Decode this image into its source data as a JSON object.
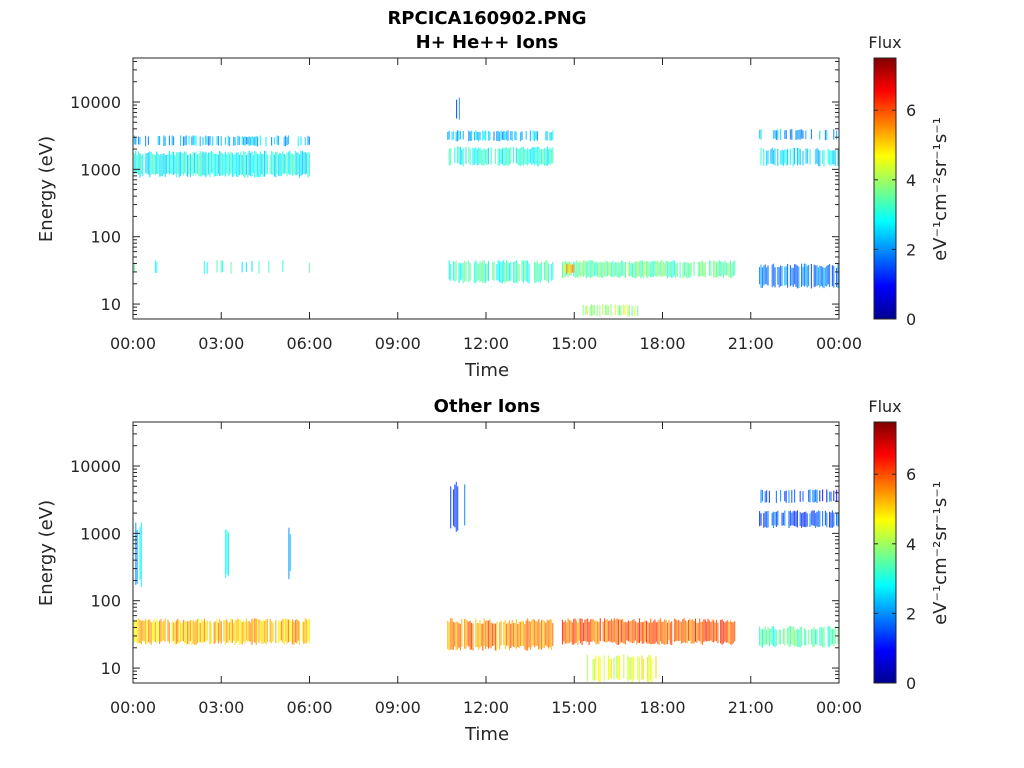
{
  "figure": {
    "title": "RPCICA160902.PNG"
  },
  "colors": {
    "colormap": "jet",
    "axis": "#262626",
    "background": "#ffffff"
  },
  "chart_data": [
    {
      "type": "heatmap",
      "title": "H+ He++ Ions",
      "xlabel": "Time",
      "ylabel": "Energy (eV)",
      "x_tick_labels": [
        "00:00",
        "03:00",
        "06:00",
        "09:00",
        "12:00",
        "15:00",
        "18:00",
        "21:00",
        "00:00"
      ],
      "x_range_hours": [
        0,
        24
      ],
      "y_scale": "log",
      "y_range": [
        6,
        45000
      ],
      "y_tick_labels": [
        "10",
        "100",
        "1000",
        "10000"
      ],
      "y_tick_values": [
        10,
        100,
        1000,
        10000
      ],
      "colorbar": {
        "label": "Flux",
        "units_label": "eV⁻¹cm⁻²sr⁻¹s⁻¹",
        "range": [
          0,
          7.5
        ],
        "tick_labels": [
          "0",
          "2",
          "4",
          "6"
        ],
        "tick_values": [
          0,
          2,
          4,
          6
        ]
      },
      "bands": [
        {
          "t0": 0.0,
          "t1": 6.0,
          "e_low": 2200,
          "e_high": 3200,
          "flux": 2.3,
          "density": 0.55
        },
        {
          "t0": 0.0,
          "t1": 6.0,
          "e_low": 750,
          "e_high": 1900,
          "flux": 2.9,
          "density": 0.95
        },
        {
          "t0": 0.0,
          "t1": 6.0,
          "e_low": 28,
          "e_high": 45,
          "flux": 3.0,
          "density": 0.18
        },
        {
          "t0": 10.7,
          "t1": 14.3,
          "e_low": 2600,
          "e_high": 3800,
          "flux": 2.3,
          "density": 0.6
        },
        {
          "t0": 10.7,
          "t1": 14.3,
          "e_low": 1100,
          "e_high": 2200,
          "flux": 3.0,
          "density": 0.85
        },
        {
          "t0": 11.0,
          "t1": 11.3,
          "e_low": 5000,
          "e_high": 12000,
          "flux": 1.6,
          "density": 0.35
        },
        {
          "t0": 10.7,
          "t1": 14.3,
          "e_low": 20,
          "e_high": 45,
          "flux": 3.2,
          "density": 0.8
        },
        {
          "t0": 14.6,
          "t1": 20.5,
          "e_low": 24,
          "e_high": 45,
          "flux": 3.5,
          "density": 0.9
        },
        {
          "t0": 14.7,
          "t1": 15.0,
          "e_low": 28,
          "e_high": 40,
          "flux": 5.2,
          "density": 0.9
        },
        {
          "t0": 15.3,
          "t1": 17.3,
          "e_low": 6.5,
          "e_high": 10,
          "flux": 4.0,
          "density": 0.6
        },
        {
          "t0": 21.3,
          "t1": 24.0,
          "e_low": 1100,
          "e_high": 2100,
          "flux": 2.6,
          "density": 0.7
        },
        {
          "t0": 21.3,
          "t1": 24.0,
          "e_low": 2700,
          "e_high": 4000,
          "flux": 2.2,
          "density": 0.4
        },
        {
          "t0": 21.3,
          "t1": 24.0,
          "e_low": 17,
          "e_high": 40,
          "flux": 1.8,
          "density": 0.85
        }
      ]
    },
    {
      "type": "heatmap",
      "title": "Other Ions",
      "xlabel": "Time",
      "ylabel": "Energy (eV)",
      "x_tick_labels": [
        "00:00",
        "03:00",
        "06:00",
        "09:00",
        "12:00",
        "15:00",
        "18:00",
        "21:00",
        "00:00"
      ],
      "x_range_hours": [
        0,
        24
      ],
      "y_scale": "log",
      "y_range": [
        6,
        45000
      ],
      "y_tick_labels": [
        "10",
        "100",
        "1000",
        "10000"
      ],
      "y_tick_values": [
        10,
        100,
        1000,
        10000
      ],
      "colorbar": {
        "label": "Flux",
        "units_label": "eV⁻¹cm⁻²sr⁻¹s⁻¹",
        "range": [
          0,
          7.5
        ],
        "tick_labels": [
          "0",
          "2",
          "4",
          "6"
        ],
        "tick_values": [
          0,
          2,
          4,
          6
        ]
      },
      "bands": [
        {
          "t0": 0.0,
          "t1": 6.0,
          "e_low": 22,
          "e_high": 55,
          "flux": 5.2,
          "density": 0.95
        },
        {
          "t0": 0.0,
          "t1": 0.3,
          "e_low": 150,
          "e_high": 1500,
          "flux": 2.5,
          "density": 0.5
        },
        {
          "t0": 3.1,
          "t1": 3.3,
          "e_low": 200,
          "e_high": 1300,
          "flux": 2.4,
          "density": 0.3
        },
        {
          "t0": 5.3,
          "t1": 5.6,
          "e_low": 200,
          "e_high": 1300,
          "flux": 2.4,
          "density": 0.3
        },
        {
          "t0": 10.8,
          "t1": 11.4,
          "e_low": 1000,
          "e_high": 6000,
          "flux": 1.6,
          "density": 0.45
        },
        {
          "t0": 10.7,
          "t1": 14.3,
          "e_low": 18,
          "e_high": 55,
          "flux": 5.6,
          "density": 0.95
        },
        {
          "t0": 14.6,
          "t1": 20.5,
          "e_low": 22,
          "e_high": 55,
          "flux": 5.9,
          "density": 0.95
        },
        {
          "t0": 15.4,
          "t1": 17.8,
          "e_low": 6,
          "e_high": 16,
          "flux": 4.5,
          "density": 0.6
        },
        {
          "t0": 21.3,
          "t1": 24.0,
          "e_low": 1200,
          "e_high": 2200,
          "flux": 1.6,
          "density": 0.7
        },
        {
          "t0": 21.3,
          "t1": 24.0,
          "e_low": 2800,
          "e_high": 4500,
          "flux": 1.5,
          "density": 0.4
        },
        {
          "t0": 21.3,
          "t1": 24.0,
          "e_low": 20,
          "e_high": 42,
          "flux": 3.3,
          "density": 0.9
        }
      ]
    }
  ]
}
